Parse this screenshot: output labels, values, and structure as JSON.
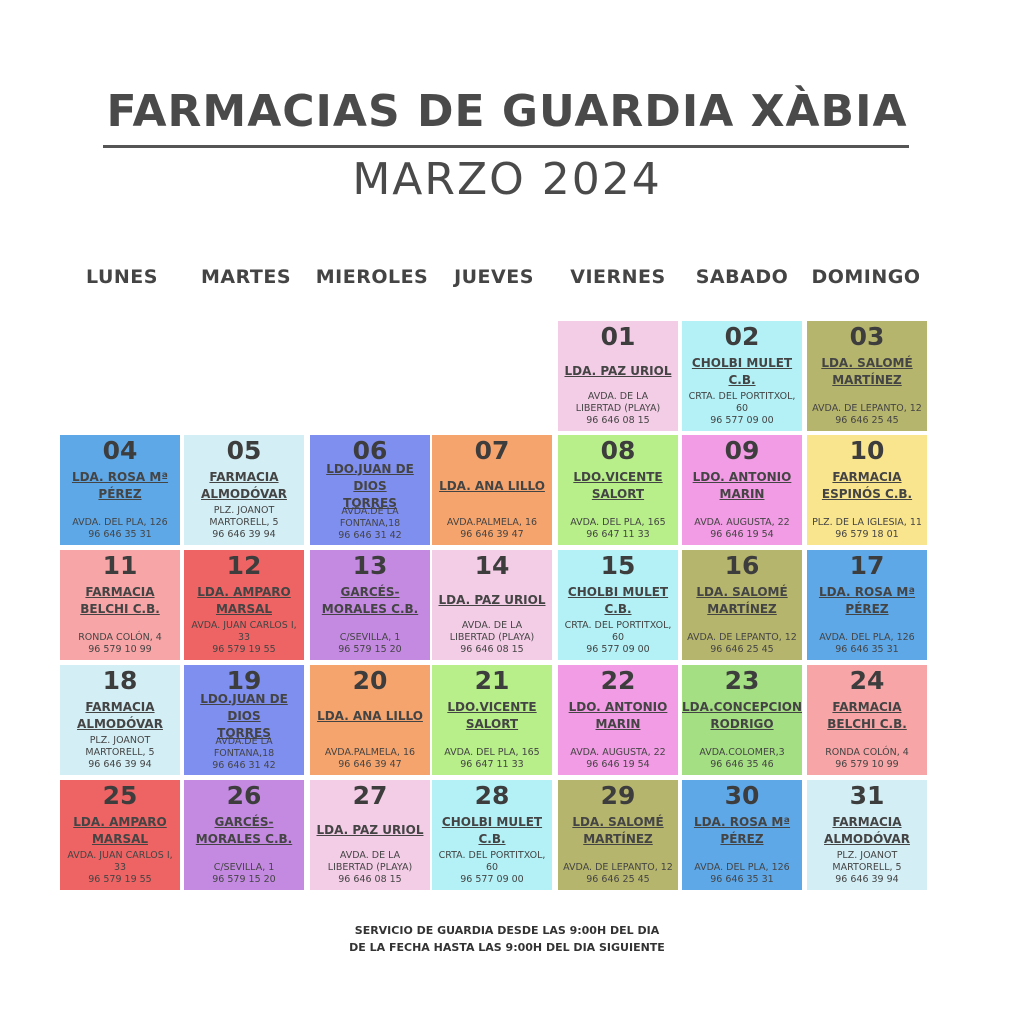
{
  "header": {
    "title": "FARMACIAS DE GUARDIA XÀBIA",
    "subtitle": "MARZO 2024"
  },
  "weekdays": [
    "LUNES",
    "MARTES",
    "MIEROLES",
    "JUEVES",
    "VIERNES",
    "SABADO",
    "DOMINGO"
  ],
  "colors": {
    "pink": "#f3cde6",
    "cyan": "#b3f1f6",
    "olive": "#b6b56e",
    "blue": "#5fa8e8",
    "lightblue": "#d3eef5",
    "periwinkle": "#7f8ff0",
    "orange": "#f6a46d",
    "lime": "#b8ef8a",
    "magenta": "#f19ce4",
    "yellow": "#f9e58e",
    "salmon": "#f7a5a6",
    "red": "#ee6464",
    "purple": "#c48ae2",
    "green": "#a5df83"
  },
  "calendar": {
    "days": [
      {
        "num": "01",
        "name": "LDA. PAZ URIOL",
        "addr": "AVDA. DE LA\nLIBERTAD (PLAYA)\n96 646 08 15",
        "color": "#f3cde6"
      },
      {
        "num": "02",
        "name": "CHOLBI MULET\nC.B.",
        "addr": "CRTA. DEL PORTITXOL, 60\n96 577 09 00",
        "color": "#b3f1f6"
      },
      {
        "num": "03",
        "name": "LDA. SALOMÉ\nMARTÍNEZ",
        "addr": "AVDA. DE LEPANTO, 12\n96 646 25 45",
        "color": "#b6b56e"
      },
      {
        "num": "04",
        "name": "LDA. ROSA Mª\nPÉREZ",
        "addr": "AVDA. DEL PLA, 126\n96 646 35 31",
        "color": "#5fa8e8"
      },
      {
        "num": "05",
        "name": "FARMACIA\nALMODÓVAR",
        "addr": "PLZ. JOANOT\nMARTORELL, 5\n96 646 39 94",
        "color": "#d3eef5"
      },
      {
        "num": "06",
        "name": "LDO.JUAN DE DIOS\nTORRES",
        "addr": "AVDA.DE LA FONTANA,18\n96 646 31 42",
        "color": "#7f8ff0"
      },
      {
        "num": "07",
        "name": "LDA. ANA LILLO",
        "addr": "AVDA.PALMELA, 16\n96 646 39 47",
        "color": "#f6a46d"
      },
      {
        "num": "08",
        "name": "LDO.VICENTE\nSALORT",
        "addr": "AVDA. DEL PLA, 165\n96 647 11 33",
        "color": "#b8ef8a"
      },
      {
        "num": "09",
        "name": "LDO. ANTONIO\nMARIN",
        "addr": "AVDA. AUGUSTA, 22\n96 646 19 54",
        "color": "#f19ce4"
      },
      {
        "num": "10",
        "name": "FARMACIA\nESPINÓS C.B.",
        "addr": "PLZ. DE LA IGLESIA, 11\n96 579 18 01",
        "color": "#f9e58e"
      },
      {
        "num": "11",
        "name": "FARMACIA\nBELCHI C.B.",
        "addr": "RONDA COLÓN, 4\n96 579 10 99",
        "color": "#f7a5a6"
      },
      {
        "num": "12",
        "name": "LDA. AMPARO\nMARSAL",
        "addr": "AVDA. JUAN CARLOS I, 33\n96 579 19 55",
        "color": "#ee6464"
      },
      {
        "num": "13",
        "name": "GARCÉS-\nMORALES C.B.",
        "addr": "C/SEVILLA, 1\n96 579 15 20",
        "color": "#c48ae2"
      },
      {
        "num": "14",
        "name": "LDA. PAZ URIOL",
        "addr": "AVDA. DE LA\nLIBERTAD (PLAYA)\n96 646 08 15",
        "color": "#f3cde6"
      },
      {
        "num": "15",
        "name": "CHOLBI MULET\nC.B.",
        "addr": "CRTA. DEL PORTITXOL, 60\n96 577 09 00",
        "color": "#b3f1f6"
      },
      {
        "num": "16",
        "name": "LDA. SALOMÉ\nMARTÍNEZ",
        "addr": "AVDA. DE LEPANTO, 12\n96 646 25 45",
        "color": "#b6b56e"
      },
      {
        "num": "17",
        "name": "LDA. ROSA Mª\nPÉREZ",
        "addr": "AVDA. DEL PLA, 126\n96 646 35 31",
        "color": "#5fa8e8"
      },
      {
        "num": "18",
        "name": "FARMACIA\nALMODÓVAR",
        "addr": "PLZ. JOANOT\nMARTORELL, 5\n96 646 39 94",
        "color": "#d3eef5"
      },
      {
        "num": "19",
        "name": "LDO.JUAN DE DIOS\nTORRES",
        "addr": "AVDA.DE LA FONTANA,18\n96 646 31 42",
        "color": "#7f8ff0"
      },
      {
        "num": "20",
        "name": "LDA. ANA LILLO",
        "addr": "AVDA.PALMELA, 16\n96 646 39 47",
        "color": "#f6a46d"
      },
      {
        "num": "21",
        "name": "LDO.VICENTE\nSALORT",
        "addr": "AVDA. DEL PLA, 165\n96 647 11 33",
        "color": "#b8ef8a"
      },
      {
        "num": "22",
        "name": "LDO. ANTONIO\nMARIN",
        "addr": "AVDA. AUGUSTA, 22\n96 646 19 54",
        "color": "#f19ce4"
      },
      {
        "num": "23",
        "name": "LDA.CONCEPCION\nRODRIGO",
        "addr": "AVDA.COLOMER,3\n96 646 35 46",
        "color": "#a5df83"
      },
      {
        "num": "24",
        "name": "FARMACIA\nBELCHI C.B.",
        "addr": "RONDA COLÓN, 4\n96 579 10 99",
        "color": "#f7a5a6"
      },
      {
        "num": "25",
        "name": "LDA. AMPARO\nMARSAL",
        "addr": "AVDA. JUAN CARLOS I, 33\n96 579 19 55",
        "color": "#ee6464"
      },
      {
        "num": "26",
        "name": "GARCÉS-\nMORALES C.B.",
        "addr": "C/SEVILLA, 1\n96 579 15 20",
        "color": "#c48ae2"
      },
      {
        "num": "27",
        "name": "LDA. PAZ URIOL",
        "addr": "AVDA. DE LA\nLIBERTAD (PLAYA)\n96 646 08 15",
        "color": "#f3cde6"
      },
      {
        "num": "28",
        "name": "CHOLBI MULET\nC.B.",
        "addr": "CRTA. DEL PORTITXOL, 60\n96 577 09 00",
        "color": "#b3f1f6"
      },
      {
        "num": "29",
        "name": "LDA. SALOMÉ\nMARTÍNEZ",
        "addr": "AVDA. DE LEPANTO, 12\n96 646 25 45",
        "color": "#b6b56e"
      },
      {
        "num": "30",
        "name": "LDA. ROSA Mª\nPÉREZ",
        "addr": "AVDA. DEL PLA, 126\n96 646 35 31",
        "color": "#5fa8e8"
      },
      {
        "num": "31",
        "name": "FARMACIA\nALMODÓVAR",
        "addr": "PLZ. JOANOT\nMARTORELL, 5\n96 646 39 94",
        "color": "#d3eef5"
      }
    ]
  },
  "footer": {
    "line1": "SERVICIO DE GUARDIA DESDE LAS 9:00H DEL DIA",
    "line2": "DE LA FECHA HASTA LAS 9:00H DEL DIA SIGUIENTE"
  }
}
